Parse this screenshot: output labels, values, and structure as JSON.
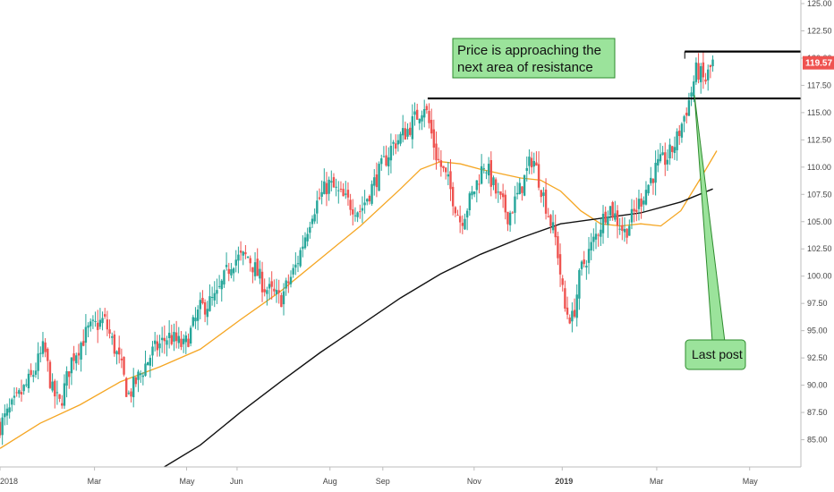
{
  "chart_data": {
    "type": "candlestick",
    "x_ticks": [
      "2018",
      "Mar",
      "May",
      "Jun",
      "Aug",
      "Sep",
      "Nov",
      "2019",
      "Mar",
      "May"
    ],
    "y_ticks": [
      "85.00",
      "87.50",
      "90.00",
      "92.50",
      "95.00",
      "97.50",
      "100.00",
      "102.50",
      "105.00",
      "107.50",
      "110.00",
      "112.50",
      "115.00",
      "117.50",
      "120.00",
      "122.50",
      "125.00"
    ],
    "ylim": [
      82.5,
      125.0
    ],
    "last_price": "119.57",
    "colors": {
      "up": "#26a69a",
      "down": "#ef5350",
      "ma_short": "#f5a623",
      "ma_long": "#111111",
      "annotation_fill": "#9be39b",
      "annotation_border": "#2e8b2e",
      "price_tag": "#ef5350"
    },
    "resistance_levels": [
      {
        "y": 116.3,
        "x_start": 0.534,
        "x_end": 1.0
      },
      {
        "y": 120.6,
        "x_start": 0.855,
        "x_end": 1.0
      }
    ],
    "close_path": [
      [
        0.0,
        86.3
      ],
      [
        0.02,
        88.5
      ],
      [
        0.04,
        90.8
      ],
      [
        0.055,
        93.5
      ],
      [
        0.065,
        89.5
      ],
      [
        0.075,
        88.2
      ],
      [
        0.09,
        92.5
      ],
      [
        0.11,
        95.0
      ],
      [
        0.13,
        96.0
      ],
      [
        0.15,
        92.0
      ],
      [
        0.16,
        89.0
      ],
      [
        0.175,
        91.0
      ],
      [
        0.19,
        93.0
      ],
      [
        0.21,
        94.5
      ],
      [
        0.23,
        93.5
      ],
      [
        0.25,
        97.0
      ],
      [
        0.27,
        98.0
      ],
      [
        0.29,
        101.5
      ],
      [
        0.31,
        101.8
      ],
      [
        0.33,
        99.0
      ],
      [
        0.35,
        97.8
      ],
      [
        0.37,
        101.0
      ],
      [
        0.39,
        106.0
      ],
      [
        0.41,
        108.5
      ],
      [
        0.43,
        107.0
      ],
      [
        0.45,
        106.0
      ],
      [
        0.47,
        109.0
      ],
      [
        0.49,
        112.0
      ],
      [
        0.51,
        113.5
      ],
      [
        0.53,
        115.8
      ],
      [
        0.545,
        111.0
      ],
      [
        0.56,
        108.5
      ],
      [
        0.575,
        105.0
      ],
      [
        0.59,
        107.5
      ],
      [
        0.605,
        110.5
      ],
      [
        0.62,
        107.5
      ],
      [
        0.635,
        105.5
      ],
      [
        0.65,
        108.0
      ],
      [
        0.665,
        111.0
      ],
      [
        0.68,
        107.0
      ],
      [
        0.695,
        103.0
      ],
      [
        0.705,
        97.0
      ],
      [
        0.715,
        96.0
      ],
      [
        0.725,
        100.5
      ],
      [
        0.74,
        103.0
      ],
      [
        0.76,
        106.5
      ],
      [
        0.78,
        104.0
      ],
      [
        0.8,
        107.0
      ],
      [
        0.82,
        110.0
      ],
      [
        0.835,
        111.0
      ],
      [
        0.845,
        112.5
      ],
      [
        0.86,
        116.0
      ],
      [
        0.87,
        119.0
      ],
      [
        0.88,
        117.8
      ],
      [
        0.89,
        119.57
      ]
    ],
    "ma_short": [
      [
        0.0,
        84.2
      ],
      [
        0.05,
        86.5
      ],
      [
        0.1,
        88.2
      ],
      [
        0.15,
        90.3
      ],
      [
        0.2,
        91.7
      ],
      [
        0.25,
        93.3
      ],
      [
        0.3,
        96.0
      ],
      [
        0.35,
        98.6
      ],
      [
        0.4,
        101.6
      ],
      [
        0.45,
        104.6
      ],
      [
        0.5,
        108.0
      ],
      [
        0.525,
        109.8
      ],
      [
        0.55,
        110.5
      ],
      [
        0.575,
        110.3
      ],
      [
        0.6,
        109.8
      ],
      [
        0.625,
        109.4
      ],
      [
        0.65,
        109.0
      ],
      [
        0.675,
        108.8
      ],
      [
        0.7,
        107.8
      ],
      [
        0.725,
        106.0
      ],
      [
        0.75,
        104.8
      ],
      [
        0.775,
        104.6
      ],
      [
        0.8,
        104.8
      ],
      [
        0.825,
        104.6
      ],
      [
        0.85,
        106.0
      ],
      [
        0.875,
        109.0
      ],
      [
        0.895,
        111.5
      ]
    ],
    "ma_long": [
      [
        0.205,
        82.5
      ],
      [
        0.25,
        84.5
      ],
      [
        0.3,
        87.5
      ],
      [
        0.35,
        90.3
      ],
      [
        0.4,
        93.0
      ],
      [
        0.45,
        95.5
      ],
      [
        0.5,
        98.0
      ],
      [
        0.55,
        100.2
      ],
      [
        0.6,
        102.0
      ],
      [
        0.65,
        103.5
      ],
      [
        0.7,
        104.8
      ],
      [
        0.75,
        105.3
      ],
      [
        0.8,
        105.8
      ],
      [
        0.85,
        106.8
      ],
      [
        0.89,
        108.0
      ]
    ],
    "annotations": [
      {
        "lines": [
          "Price is approaching the",
          "next area of resistance"
        ]
      },
      {
        "lines": [
          "Last post"
        ]
      }
    ]
  }
}
